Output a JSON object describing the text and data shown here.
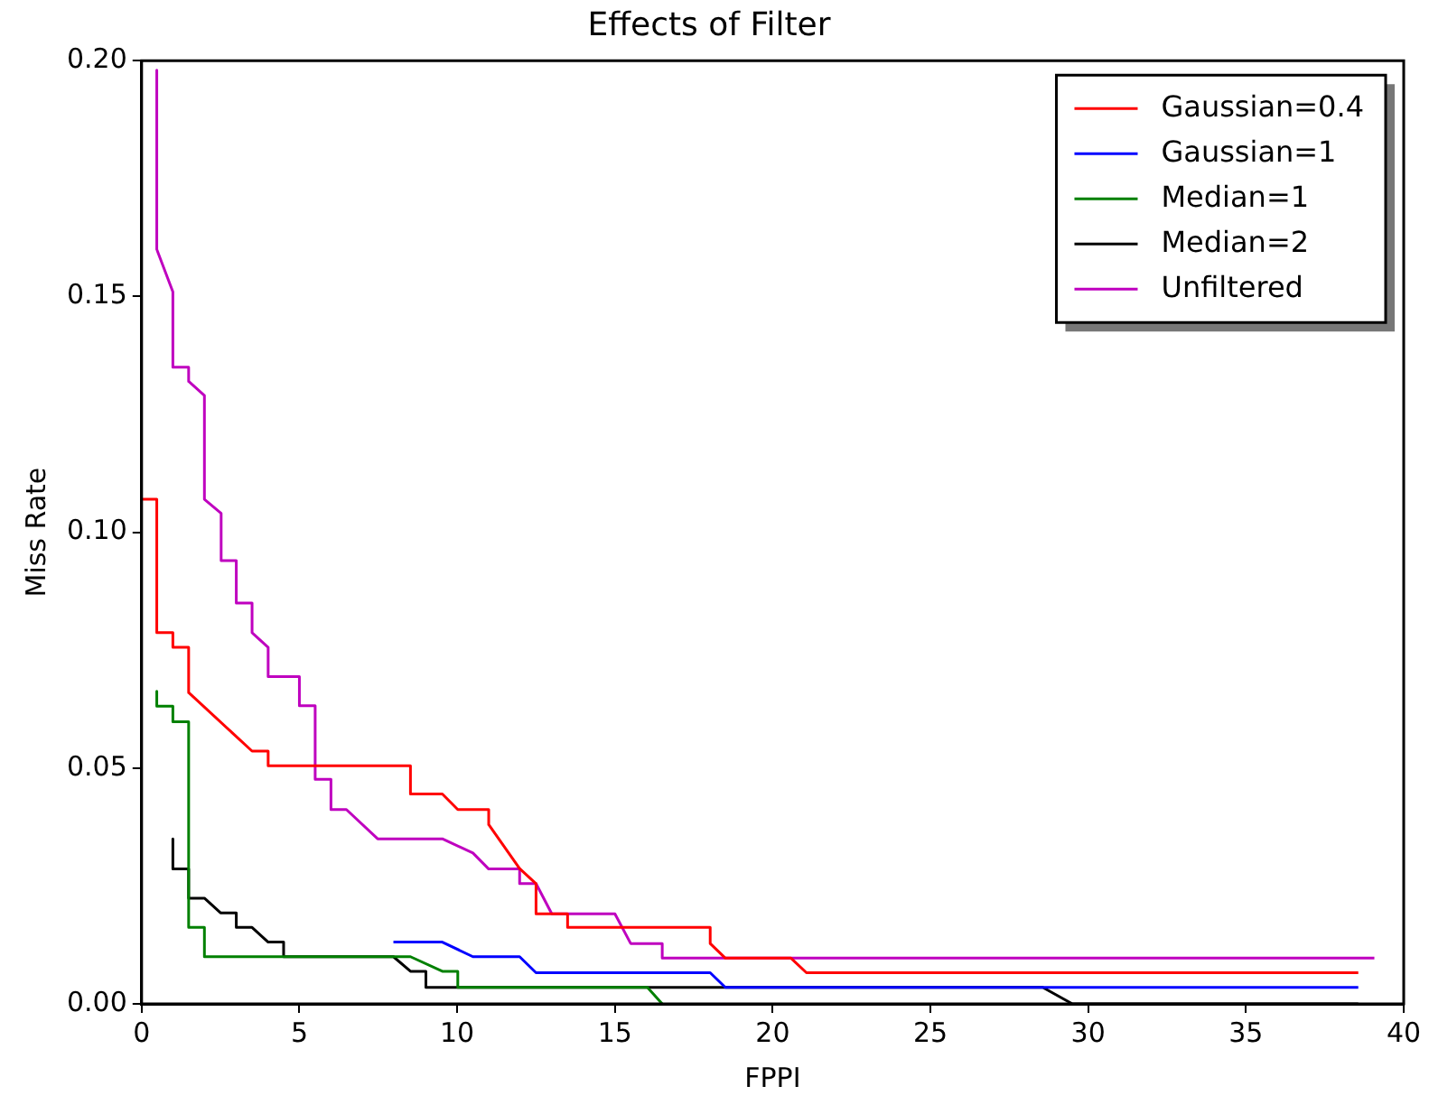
{
  "chart_data": {
    "type": "line",
    "title": "Effects of Filter",
    "xlabel": "FPPI",
    "ylabel": "Miss Rate",
    "xlim": [
      0,
      40
    ],
    "xticks": [
      0,
      5,
      10,
      15,
      20,
      25,
      30,
      35,
      40
    ],
    "ylim": [
      0,
      0.2
    ],
    "yticks": [
      {
        "value": 0,
        "label": "0.00"
      },
      {
        "value": 0.05,
        "label": "0.05"
      },
      {
        "value": 0.1,
        "label": "0.10"
      },
      {
        "value": 0.15,
        "label": "0.15"
      },
      {
        "value": 0.2,
        "label": "0.20"
      }
    ],
    "grid": false,
    "legend": "top right",
    "marker": "none",
    "line_style": "solid",
    "series": [
      {
        "name": "Gaussian=0.4",
        "color": "#ff0000",
        "x": [
          0,
          0.48,
          0.48,
          0.99,
          0.99,
          1.49,
          1.49,
          3.5,
          4.01,
          4.01,
          8.52,
          8.52,
          9.53,
          10.02,
          11.0,
          11.0,
          11.98,
          12.5,
          12.5,
          13.5,
          13.5,
          18.02,
          18.02,
          18.5,
          20.58,
          21.07,
          38.56
        ],
        "values": [
          0.107,
          0.107,
          0.0787,
          0.0787,
          0.0756,
          0.0756,
          0.066,
          0.0536,
          0.0536,
          0.0505,
          0.0505,
          0.0445,
          0.0445,
          0.0412,
          0.0412,
          0.038,
          0.0287,
          0.0255,
          0.0191,
          0.0191,
          0.0162,
          0.0162,
          0.0128,
          0.0097,
          0.0097,
          0.0066,
          0.0066
        ]
      },
      {
        "name": "Gaussian=1",
        "color": "#0000ff",
        "x": [
          7.98,
          9.53,
          10.5,
          11.98,
          12.5,
          18.02,
          18.5,
          38.56
        ],
        "values": [
          0.0131,
          0.0131,
          0.01,
          0.01,
          0.0066,
          0.0066,
          0.0035,
          0.0035
        ]
      },
      {
        "name": "Median=1",
        "color": "#008000",
        "x": [
          0.48,
          0.48,
          0.99,
          0.99,
          1.49,
          1.49,
          1.99,
          1.99,
          8.52,
          9.53,
          10.02,
          10.02,
          16.03,
          16.5
        ],
        "values": [
          0.0663,
          0.0631,
          0.0631,
          0.0598,
          0.0598,
          0.0162,
          0.0162,
          0.01,
          0.01,
          0.0069,
          0.0069,
          0.0035,
          0.0035,
          0
        ]
      },
      {
        "name": "Median=2",
        "color": "#000000",
        "x": [
          0.99,
          0.99,
          1.49,
          1.49,
          1.99,
          2.5,
          3.0,
          3.0,
          3.5,
          4.01,
          4.5,
          4.5,
          7.98,
          8.52,
          9.01,
          9.01,
          28.56,
          29.5,
          38.56
        ],
        "values": [
          0.035,
          0.0286,
          0.0286,
          0.0224,
          0.0224,
          0.0193,
          0.0193,
          0.0162,
          0.0162,
          0.0131,
          0.0131,
          0.01,
          0.01,
          0.0069,
          0.0069,
          0.0035,
          0.0035,
          0,
          0
        ]
      },
      {
        "name": "Unfiltered",
        "color": "#bf00bf",
        "x": [
          0.48,
          0.48,
          0.99,
          0.99,
          1.49,
          1.49,
          1.99,
          1.99,
          2.52,
          2.52,
          3.0,
          3.0,
          3.5,
          3.5,
          4.01,
          4.01,
          5.0,
          5.0,
          5.5,
          5.5,
          6.0,
          6.0,
          6.49,
          7.48,
          9.53,
          10.5,
          11.0,
          11.98,
          11.98,
          12.5,
          13.0,
          15.0,
          15.5,
          16.5,
          16.5,
          39.07
        ],
        "values": [
          0.198,
          0.16,
          0.151,
          0.135,
          0.135,
          0.132,
          0.129,
          0.107,
          0.104,
          0.094,
          0.094,
          0.085,
          0.085,
          0.0787,
          0.0756,
          0.0694,
          0.0694,
          0.0632,
          0.0632,
          0.0476,
          0.0476,
          0.0412,
          0.0412,
          0.035,
          0.035,
          0.032,
          0.0286,
          0.0286,
          0.0255,
          0.0255,
          0.0191,
          0.0191,
          0.0128,
          0.0128,
          0.0097,
          0.0097
        ]
      }
    ]
  }
}
